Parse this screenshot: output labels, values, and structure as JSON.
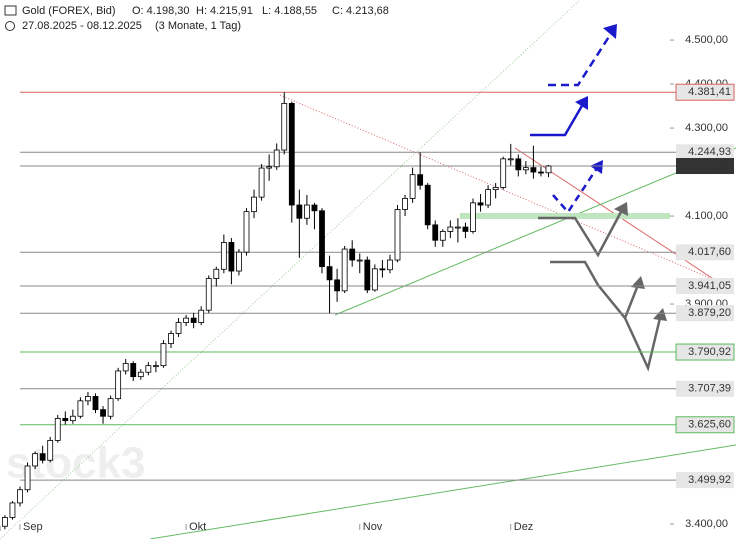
{
  "chart_data": {
    "type": "candlestick",
    "title": "Gold (FOREX, Bid)",
    "ohlc_labels": [
      "O: 4.198,30",
      "H: 4.215,91",
      "L: 4.188,55",
      "C: 4.213,68"
    ],
    "range": "27.08.2025 - 08.12.2025",
    "period": "(3 Monate, 1 Tag)",
    "watermark": "stock3",
    "up_color": "#ffffff",
    "down_color": "#000000",
    "categories": [
      null,
      null,
      null,
      "Sep",
      null,
      null,
      null,
      null,
      null,
      null,
      null,
      null,
      null,
      null,
      null,
      null,
      null,
      null,
      null,
      null,
      null,
      null,
      null,
      null,
      null,
      "Okt",
      null,
      null,
      null,
      null,
      null,
      null,
      null,
      null,
      null,
      null,
      null,
      null,
      null,
      null,
      null,
      null,
      null,
      null,
      null,
      null,
      null,
      null,
      "Nov",
      null,
      null,
      null,
      null,
      null,
      null,
      null,
      null,
      null,
      null,
      null,
      null,
      null,
      null,
      null,
      null,
      null,
      null,
      null,
      "Dez",
      null,
      null,
      null,
      null,
      null
    ],
    "candles": [
      [
        3385,
        3400,
        3378,
        3395
      ],
      [
        3395,
        3420,
        3388,
        3415
      ],
      [
        3415,
        3452,
        3410,
        3448
      ],
      [
        3448,
        3485,
        3440,
        3478
      ],
      [
        3478,
        3540,
        3472,
        3532
      ],
      [
        3532,
        3565,
        3525,
        3560
      ],
      [
        3560,
        3578,
        3538,
        3545
      ],
      [
        3545,
        3598,
        3540,
        3590
      ],
      [
        3590,
        3648,
        3585,
        3640
      ],
      [
        3640,
        3656,
        3626,
        3635
      ],
      [
        3635,
        3660,
        3628,
        3645
      ],
      [
        3645,
        3688,
        3640,
        3680
      ],
      [
        3680,
        3700,
        3670,
        3690
      ],
      [
        3690,
        3697,
        3652,
        3660
      ],
      [
        3660,
        3668,
        3628,
        3645
      ],
      [
        3645,
        3692,
        3638,
        3685
      ],
      [
        3685,
        3755,
        3680,
        3748
      ],
      [
        3748,
        3775,
        3740,
        3765
      ],
      [
        3765,
        3770,
        3725,
        3735
      ],
      [
        3735,
        3752,
        3728,
        3745
      ],
      [
        3745,
        3768,
        3738,
        3760
      ],
      [
        3760,
        3770,
        3745,
        3760
      ],
      [
        3760,
        3818,
        3755,
        3810
      ],
      [
        3810,
        3840,
        3800,
        3833
      ],
      [
        3833,
        3868,
        3825,
        3858
      ],
      [
        3858,
        3875,
        3850,
        3868
      ],
      [
        3868,
        3880,
        3845,
        3858
      ],
      [
        3858,
        3895,
        3852,
        3886
      ],
      [
        3886,
        3965,
        3880,
        3958
      ],
      [
        3958,
        3985,
        3940,
        3979
      ],
      [
        3979,
        4058,
        3970,
        4040
      ],
      [
        4040,
        4050,
        3945,
        3975
      ],
      [
        3975,
        4025,
        3965,
        4018
      ],
      [
        4018,
        4118,
        4010,
        4110
      ],
      [
        4110,
        4160,
        4095,
        4143
      ],
      [
        4143,
        4218,
        4135,
        4209
      ],
      [
        4209,
        4240,
        4180,
        4212
      ],
      [
        4212,
        4265,
        4205,
        4250
      ],
      [
        4250,
        4381.41,
        4240,
        4356
      ],
      [
        4356,
        4360,
        4085,
        4125
      ],
      [
        4125,
        4160,
        4005,
        4095
      ],
      [
        4095,
        4148,
        4080,
        4125
      ],
      [
        4125,
        4130,
        4070,
        4112
      ],
      [
        4112,
        4118,
        3970,
        3985
      ],
      [
        3985,
        4010,
        3879.2,
        3955
      ],
      [
        3955,
        3980,
        3905,
        3930
      ],
      [
        3930,
        4032,
        3925,
        4025
      ],
      [
        4025,
        4045,
        3985,
        4000
      ],
      [
        4000,
        4015,
        3970,
        4000
      ],
      [
        4000,
        4008,
        3925,
        3932
      ],
      [
        3932,
        3990,
        3928,
        3980
      ],
      [
        3980,
        4000,
        3960,
        3978
      ],
      [
        3978,
        4012,
        3970,
        4000
      ],
      [
        4000,
        4125,
        3995,
        4115
      ],
      [
        4115,
        4148,
        4100,
        4140
      ],
      [
        4140,
        4210,
        4130,
        4194
      ],
      [
        4194,
        4244.93,
        4160,
        4170
      ],
      [
        4170,
        4175,
        4070,
        4080
      ],
      [
        4080,
        4090,
        4030,
        4045
      ],
      [
        4045,
        4070,
        4030,
        4065
      ],
      [
        4065,
        4090,
        4050,
        4075
      ],
      [
        4075,
        4095,
        4040,
        4075
      ],
      [
        4075,
        4085,
        4050,
        4065
      ],
      [
        4065,
        4140,
        4060,
        4130
      ],
      [
        4130,
        4150,
        4110,
        4125
      ],
      [
        4125,
        4170,
        4118,
        4160
      ],
      [
        4160,
        4175,
        4140,
        4165
      ],
      [
        4165,
        4235,
        4160,
        4230
      ],
      [
        4230,
        4264,
        4215,
        4230
      ],
      [
        4230,
        4240,
        4190,
        4205
      ],
      [
        4205,
        4225,
        4195,
        4210
      ],
      [
        4210,
        4260,
        4185,
        4200
      ],
      [
        4200,
        4212,
        4190,
        4198.3
      ],
      [
        4198.3,
        4215.91,
        4188.55,
        4213.68
      ]
    ],
    "ylim": [
      3366,
      4591
    ],
    "yticks": [
      {
        "value": 4500,
        "label": "4.500,00"
      },
      {
        "value": 4400,
        "label": "4.400,00"
      },
      {
        "value": 4300,
        "label": "4.300,00"
      },
      {
        "value": 4100,
        "label": "4.100,00"
      },
      {
        "value": 3900,
        "label": "3.900,00"
      },
      {
        "value": 3400,
        "label": "3.400,00"
      }
    ],
    "levels": [
      {
        "value": 4381.41,
        "label": "4.381,41",
        "color": "#d96060",
        "label_bg": "#e6e6e6"
      },
      {
        "value": 4244.93,
        "label": "4.244,93",
        "color": "#888888",
        "label_bg": "#e6e6e6"
      },
      {
        "value": 4213.68,
        "label": "4.213,68",
        "color": "#888888",
        "label_bg": "#333333"
      },
      {
        "value": 4017.6,
        "label": "4.017,60",
        "color": "#888888",
        "label_bg": "#e6e6e6"
      },
      {
        "value": 3941.05,
        "label": "3.941,05",
        "color": "#888888",
        "label_bg": "#e6e6e6"
      },
      {
        "value": 3879.2,
        "label": "3.879,20",
        "color": "#888888",
        "label_bg": "#e6e6e6"
      },
      {
        "value": 3790.92,
        "label": "3.790,92",
        "color": "#5cb85c",
        "label_bg": "#e6e6e6"
      },
      {
        "value": 3707.39,
        "label": "3.707,39",
        "color": "#888888",
        "label_bg": "#e6e6e6"
      },
      {
        "value": 3625.6,
        "label": "3.625,60",
        "color": "#5cb85c",
        "label_bg": "#e6e6e6"
      },
      {
        "value": 3499.92,
        "label": "3.499,92",
        "color": "#888888",
        "label_bg": "#e6e6e6"
      }
    ]
  }
}
